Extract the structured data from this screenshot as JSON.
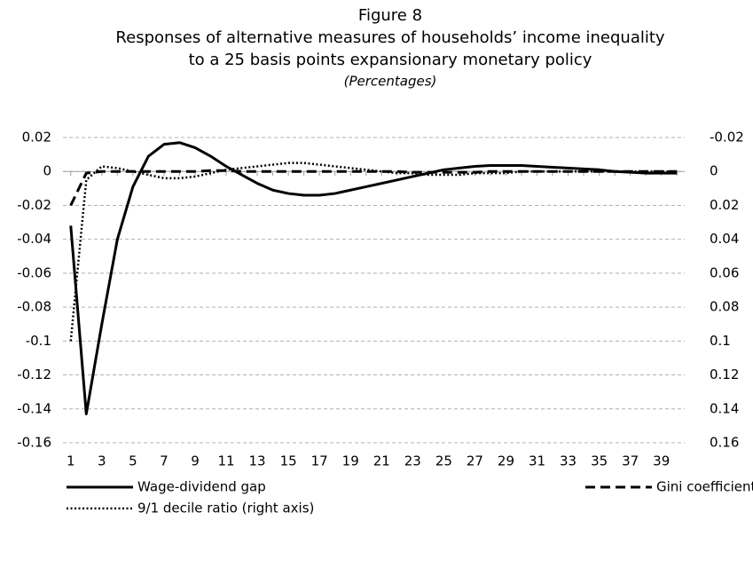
{
  "chart_data": {
    "type": "line",
    "title": [
      "Figure 8",
      "Responses of alternative measures of households’ income inequality",
      "to a 25 basis points expansionary monetary policy"
    ],
    "subtitle": "(Percentages)",
    "x": [
      1,
      2,
      3,
      4,
      5,
      6,
      7,
      8,
      9,
      10,
      11,
      12,
      13,
      14,
      15,
      16,
      17,
      18,
      19,
      20,
      21,
      22,
      23,
      24,
      25,
      26,
      27,
      28,
      29,
      30,
      31,
      32,
      33,
      34,
      35,
      36,
      37,
      38,
      39,
      40
    ],
    "xlim": [
      0.5,
      40.5
    ],
    "xticks": [
      1,
      3,
      5,
      7,
      9,
      11,
      13,
      15,
      17,
      19,
      21,
      23,
      25,
      27,
      29,
      31,
      33,
      35,
      37,
      39
    ],
    "ylim": [
      -0.16,
      0.02
    ],
    "yticks": [
      0.02,
      0,
      -0.02,
      -0.04,
      -0.06,
      -0.08,
      -0.1,
      -0.12,
      -0.14,
      -0.16
    ],
    "y2lim": [
      0.16,
      -0.02
    ],
    "y2ticks": [
      -0.02,
      0,
      0.02,
      0.04,
      0.06,
      0.08,
      0.1,
      0.12,
      0.14,
      0.16
    ],
    "grid": true,
    "legend": "bottom",
    "series": [
      {
        "name": "Wage-dividend gap",
        "color": "#000000",
        "style": "solid",
        "values": [
          -0.032,
          -0.143,
          -0.09,
          -0.04,
          -0.009,
          0.009,
          0.016,
          0.017,
          0.014,
          0.009,
          0.003,
          -0.002,
          -0.007,
          -0.011,
          -0.013,
          -0.014,
          -0.014,
          -0.013,
          -0.011,
          -0.009,
          -0.007,
          -0.005,
          -0.003,
          -0.001,
          0.001,
          0.002,
          0.003,
          0.0035,
          0.0035,
          0.0035,
          0.003,
          0.0025,
          0.002,
          0.0015,
          0.001,
          0,
          -0.0005,
          -0.001,
          -0.001,
          -0.001
        ]
      },
      {
        "name": "Gini coefficient (right axis)",
        "color": "#000000",
        "style": "dashed",
        "axis": "y2",
        "values": [
          0.02,
          0.001,
          0,
          0,
          0,
          0,
          0,
          0,
          0,
          -0.0005,
          -0.0005,
          0,
          0,
          0,
          0,
          0,
          0,
          0,
          0,
          0,
          0,
          0,
          0.0005,
          0.0005,
          0.0005,
          0.0005,
          0.0005,
          0,
          0,
          0,
          0,
          0,
          0,
          0,
          0,
          0,
          0,
          0,
          0,
          0
        ]
      },
      {
        "name": "9/1 decile ratio (right axis)",
        "color": "#000000",
        "style": "dotted",
        "axis": "y2",
        "values": [
          0.1,
          0.005,
          -0.003,
          -0.002,
          0,
          0.002,
          0.004,
          0.004,
          0.003,
          0.001,
          -0.001,
          -0.002,
          -0.003,
          -0.004,
          -0.005,
          -0.005,
          -0.004,
          -0.003,
          -0.002,
          -0.001,
          0,
          0.001,
          0.001,
          0.002,
          0.002,
          0.002,
          0.001,
          0.001,
          0.001,
          0,
          0,
          0,
          0,
          0,
          0,
          0,
          0,
          0,
          0,
          0
        ]
      }
    ]
  }
}
